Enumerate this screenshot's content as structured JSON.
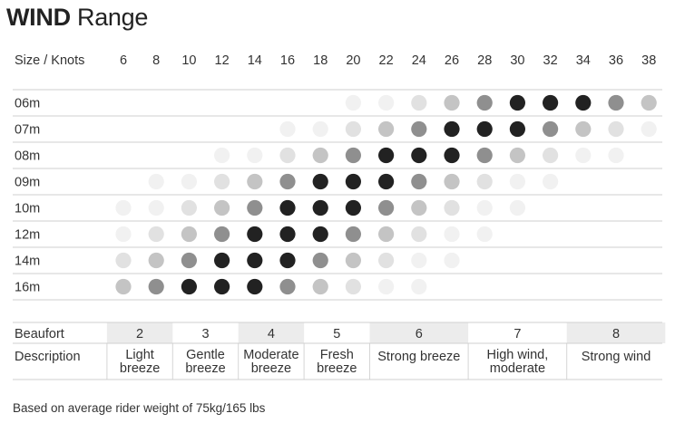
{
  "title_bold": "WIND",
  "title_rest": "Range",
  "note": "Based on average rider weight of 75kg/165 lbs",
  "chart_data": {
    "type": "heatmap",
    "header_label": "Size / Knots",
    "x": [
      6,
      8,
      10,
      12,
      14,
      16,
      18,
      20,
      22,
      24,
      26,
      28,
      30,
      32,
      34,
      36,
      38
    ],
    "rows": [
      {
        "label": "06m",
        "values": [
          0,
          0,
          0,
          0,
          0,
          0,
          0,
          1,
          1,
          2,
          3,
          4,
          5,
          5,
          5,
          4,
          3
        ]
      },
      {
        "label": "07m",
        "values": [
          0,
          0,
          0,
          0,
          0,
          1,
          1,
          2,
          3,
          4,
          5,
          5,
          5,
          4,
          3,
          2,
          1
        ]
      },
      {
        "label": "08m",
        "values": [
          0,
          0,
          0,
          1,
          1,
          2,
          3,
          4,
          5,
          5,
          5,
          4,
          3,
          2,
          1,
          1,
          0
        ]
      },
      {
        "label": "09m",
        "values": [
          0,
          1,
          1,
          2,
          3,
          4,
          5,
          5,
          5,
          4,
          3,
          2,
          1,
          1,
          0,
          0,
          0
        ]
      },
      {
        "label": "10m",
        "values": [
          1,
          1,
          2,
          3,
          4,
          5,
          5,
          5,
          4,
          3,
          2,
          1,
          1,
          0,
          0,
          0,
          0
        ]
      },
      {
        "label": "12m",
        "values": [
          1,
          2,
          3,
          4,
          5,
          5,
          5,
          4,
          3,
          2,
          1,
          1,
          0,
          0,
          0,
          0,
          0
        ]
      },
      {
        "label": "14m",
        "values": [
          2,
          3,
          4,
          5,
          5,
          5,
          4,
          3,
          2,
          1,
          1,
          0,
          0,
          0,
          0,
          0,
          0
        ]
      },
      {
        "label": "16m",
        "values": [
          3,
          4,
          5,
          5,
          5,
          4,
          3,
          2,
          1,
          1,
          0,
          0,
          0,
          0,
          0,
          0,
          0
        ]
      }
    ],
    "level_colors": [
      "#ffffff",
      "#f1f1f1",
      "#e1e1e1",
      "#c4c4c4",
      "#8f8f8f",
      "#222222"
    ]
  },
  "beaufort": {
    "row_label": "Beaufort",
    "desc_label": "Description",
    "groups": [
      {
        "scale": "2",
        "desc": [
          "Light",
          "breeze"
        ],
        "span": [
          6,
          8
        ],
        "shade": true
      },
      {
        "scale": "3",
        "desc": [
          "Gentle",
          "breeze"
        ],
        "span": [
          10,
          12
        ],
        "shade": false
      },
      {
        "scale": "4",
        "desc": [
          "Moderate",
          "breeze"
        ],
        "span": [
          14,
          16
        ],
        "shade": true
      },
      {
        "scale": "5",
        "desc": [
          "Fresh",
          "breeze"
        ],
        "span": [
          18,
          20
        ],
        "shade": false
      },
      {
        "scale": "6",
        "desc": [
          "Strong breeze"
        ],
        "span": [
          22,
          26
        ],
        "shade": true
      },
      {
        "scale": "7",
        "desc": [
          "High wind,",
          "moderate"
        ],
        "span": [
          28,
          32
        ],
        "shade": false
      },
      {
        "scale": "8",
        "desc": [
          "Strong wind"
        ],
        "span": [
          34,
          38
        ],
        "shade": true
      }
    ],
    "shade_color": "#ececec"
  }
}
